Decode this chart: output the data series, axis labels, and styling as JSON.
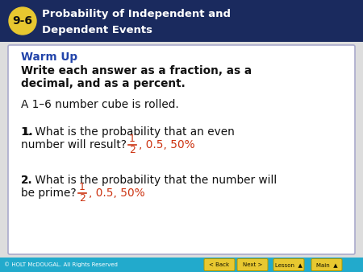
{
  "header_bg": "#1a2a5e",
  "header_text_color": "#ffffff",
  "header_badge_bg": "#e8c830",
  "header_badge_text": "9-6",
  "header_title_line1": "Probability of Independent and",
  "header_title_line2": "Dependent Events",
  "footer_bg": "#22aacc",
  "footer_copyright": "© HOLT McDOUGAL. All Rights Reserved",
  "footer_buttons": [
    "< Back",
    "Next >",
    "Lesson  ▲",
    "Main  ▲"
  ],
  "footer_button_bg": "#e8c830",
  "content_bg": "#ffffff",
  "content_border": "#aaaacc",
  "warmup_color": "#2244aa",
  "warmup_label": "Warm Up",
  "instruction_line1": "Write each answer as a fraction, as a",
  "instruction_line2": "decimal, and as a percent.",
  "intro_text": "A 1–6 number cube is rolled.",
  "q1_line1": "1. What is the probability that an even",
  "q1_line2": "number will result?",
  "q1_red": ", 0.5, 50%",
  "q1_frac_num": "1",
  "q1_frac_den": "2",
  "q2_line1": "2. What is the probability that the number will",
  "q2_line2": "be prime?",
  "q2_red": ", 0.5, 50%",
  "q2_frac_num": "1",
  "q2_frac_den": "2",
  "answer_color": "#cc3311",
  "body_text_color": "#111111",
  "main_bg": "#dddddd"
}
